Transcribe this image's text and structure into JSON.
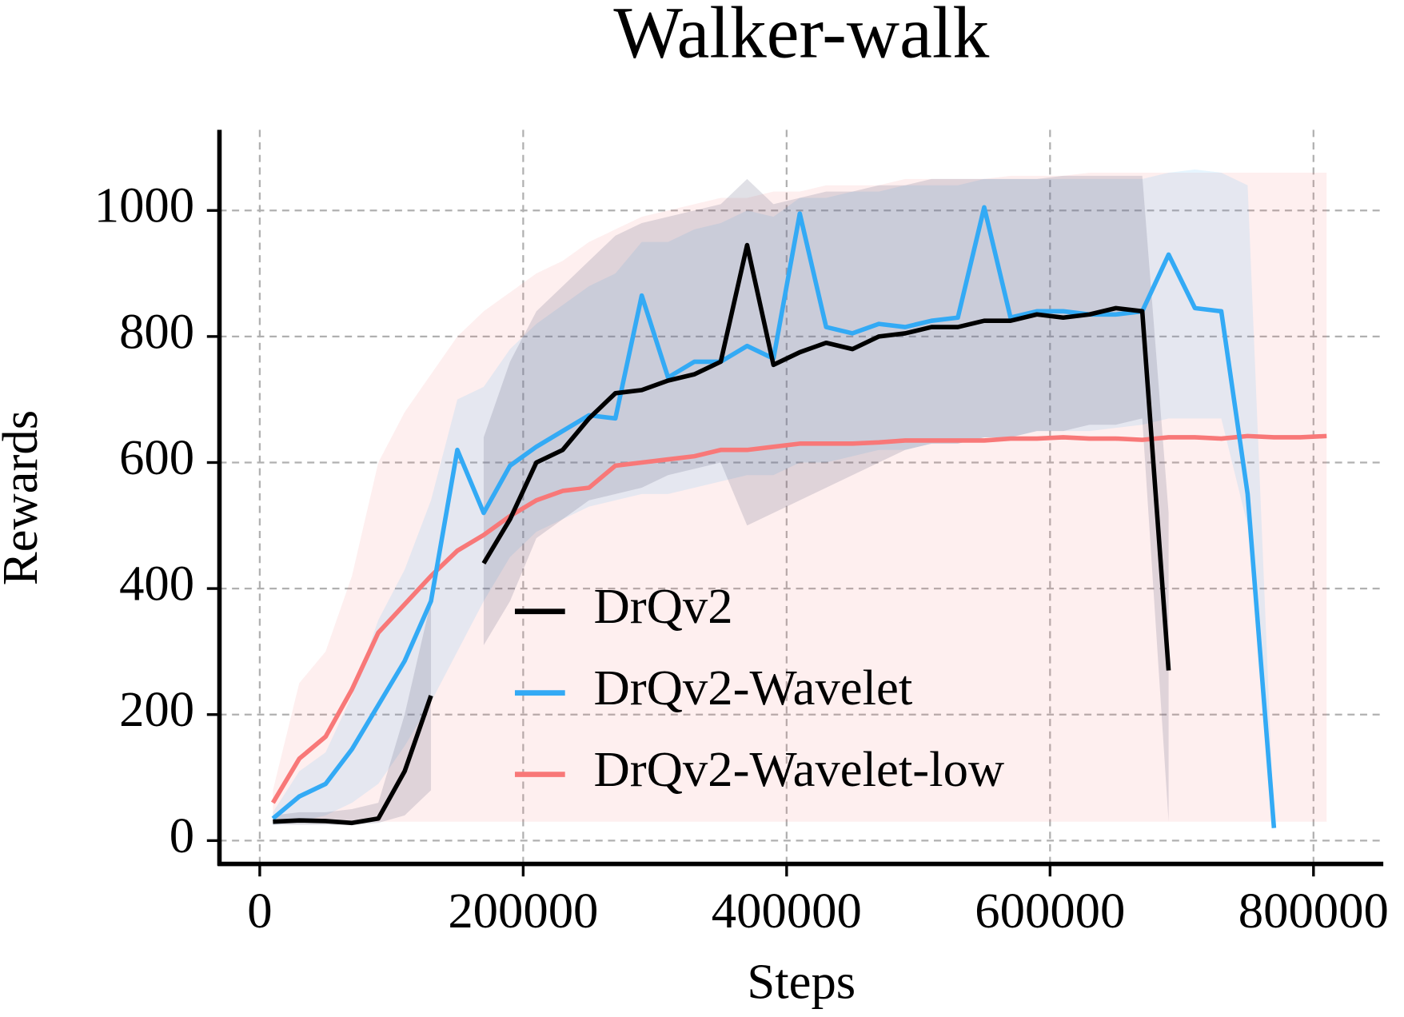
{
  "chart_data": {
    "type": "line",
    "title": "Walker-walk",
    "xlabel": "Steps",
    "ylabel": "Rewards",
    "x": [
      10000,
      30000,
      50000,
      70000,
      90000,
      110000,
      130000,
      150000,
      170000,
      190000,
      210000,
      230000,
      250000,
      270000,
      290000,
      310000,
      330000,
      350000,
      370000,
      390000,
      410000,
      430000,
      450000,
      470000,
      490000,
      510000,
      530000,
      550000,
      570000,
      590000,
      610000,
      630000,
      650000,
      670000,
      690000,
      710000,
      730000,
      750000,
      770000,
      790000,
      810000
    ],
    "series": [
      {
        "name": "DrQv2",
        "color": "#000000",
        "values": [
          30,
          32,
          31,
          28,
          35,
          110,
          230,
          null,
          440,
          510,
          600,
          620,
          670,
          710,
          715,
          730,
          740,
          760,
          945,
          755,
          775,
          790,
          780,
          800,
          805,
          815,
          815,
          825,
          825,
          835,
          830,
          835,
          845,
          840,
          270,
          null,
          null,
          null,
          null,
          null,
          null
        ],
        "lower": [
          25,
          25,
          25,
          25,
          28,
          40,
          80,
          null,
          310,
          380,
          480,
          510,
          540,
          550,
          560,
          580,
          590,
          600,
          500,
          520,
          540,
          560,
          580,
          600,
          620,
          630,
          630,
          640,
          640,
          650,
          650,
          660,
          660,
          670,
          30,
          null,
          null,
          null,
          null,
          null,
          null
        ],
        "upper": [
          40,
          45,
          45,
          50,
          60,
          200,
          380,
          null,
          640,
          760,
          840,
          880,
          920,
          960,
          980,
          990,
          1000,
          1010,
          1050,
          1010,
          1020,
          1030,
          1030,
          1040,
          1040,
          1050,
          1050,
          1050,
          1050,
          1050,
          1055,
          1055,
          1055,
          1055,
          520,
          null,
          null,
          null,
          null,
          null,
          null
        ]
      },
      {
        "name": "DrQv2-Wavelet",
        "color": "#33aaf5",
        "values": [
          35,
          70,
          90,
          145,
          215,
          285,
          380,
          620,
          520,
          595,
          625,
          650,
          675,
          670,
          865,
          735,
          760,
          760,
          785,
          765,
          995,
          815,
          805,
          820,
          815,
          825,
          830,
          1005,
          830,
          840,
          840,
          835,
          835,
          840,
          930,
          845,
          840,
          550,
          20,
          null,
          null
        ],
        "lower": [
          25,
          30,
          40,
          60,
          90,
          150,
          220,
          300,
          380,
          450,
          490,
          510,
          530,
          540,
          550,
          550,
          560,
          570,
          580,
          580,
          600,
          600,
          610,
          620,
          620,
          630,
          630,
          640,
          640,
          650,
          650,
          650,
          655,
          660,
          670,
          670,
          670,
          500,
          15,
          null,
          null
        ],
        "upper": [
          45,
          110,
          140,
          230,
          350,
          430,
          540,
          700,
          720,
          780,
          820,
          850,
          880,
          900,
          950,
          950,
          970,
          980,
          1000,
          990,
          1020,
          1020,
          1030,
          1030,
          1040,
          1040,
          1040,
          1050,
          1050,
          1050,
          1050,
          1050,
          1050,
          1050,
          1060,
          1065,
          1060,
          1040,
          25,
          null,
          null
        ]
      },
      {
        "name": "DrQv2-Wavelet-low",
        "color": "#f87878",
        "values": [
          60,
          130,
          165,
          240,
          330,
          375,
          420,
          460,
          485,
          515,
          540,
          555,
          560,
          595,
          600,
          605,
          610,
          620,
          620,
          625,
          630,
          630,
          630,
          632,
          635,
          635,
          635,
          635,
          638,
          638,
          640,
          638,
          638,
          636,
          640,
          640,
          638,
          642,
          640,
          640,
          642
        ],
        "lower": [
          30,
          30,
          30,
          30,
          30,
          30,
          30,
          30,
          30,
          30,
          30,
          30,
          30,
          30,
          30,
          30,
          30,
          30,
          30,
          30,
          30,
          30,
          30,
          30,
          30,
          30,
          30,
          30,
          30,
          30,
          30,
          30,
          30,
          30,
          30,
          30,
          30,
          30,
          30,
          30,
          30
        ],
        "upper": [
          80,
          250,
          300,
          420,
          600,
          680,
          740,
          800,
          840,
          870,
          900,
          920,
          950,
          970,
          990,
          1000,
          1010,
          1020,
          1020,
          1030,
          1030,
          1040,
          1040,
          1040,
          1050,
          1050,
          1050,
          1050,
          1055,
          1055,
          1055,
          1060,
          1060,
          1060,
          1060,
          1060,
          1060,
          1060,
          1060,
          1060,
          1060
        ]
      }
    ],
    "xlim": [
      -30600,
      853000
    ],
    "ylim": [
      -37,
      1128
    ],
    "xticks": [
      0,
      200000,
      400000,
      600000,
      800000
    ],
    "yticks": [
      0,
      200,
      400,
      600,
      800,
      1000
    ],
    "grid": true,
    "legend": "lower center"
  }
}
